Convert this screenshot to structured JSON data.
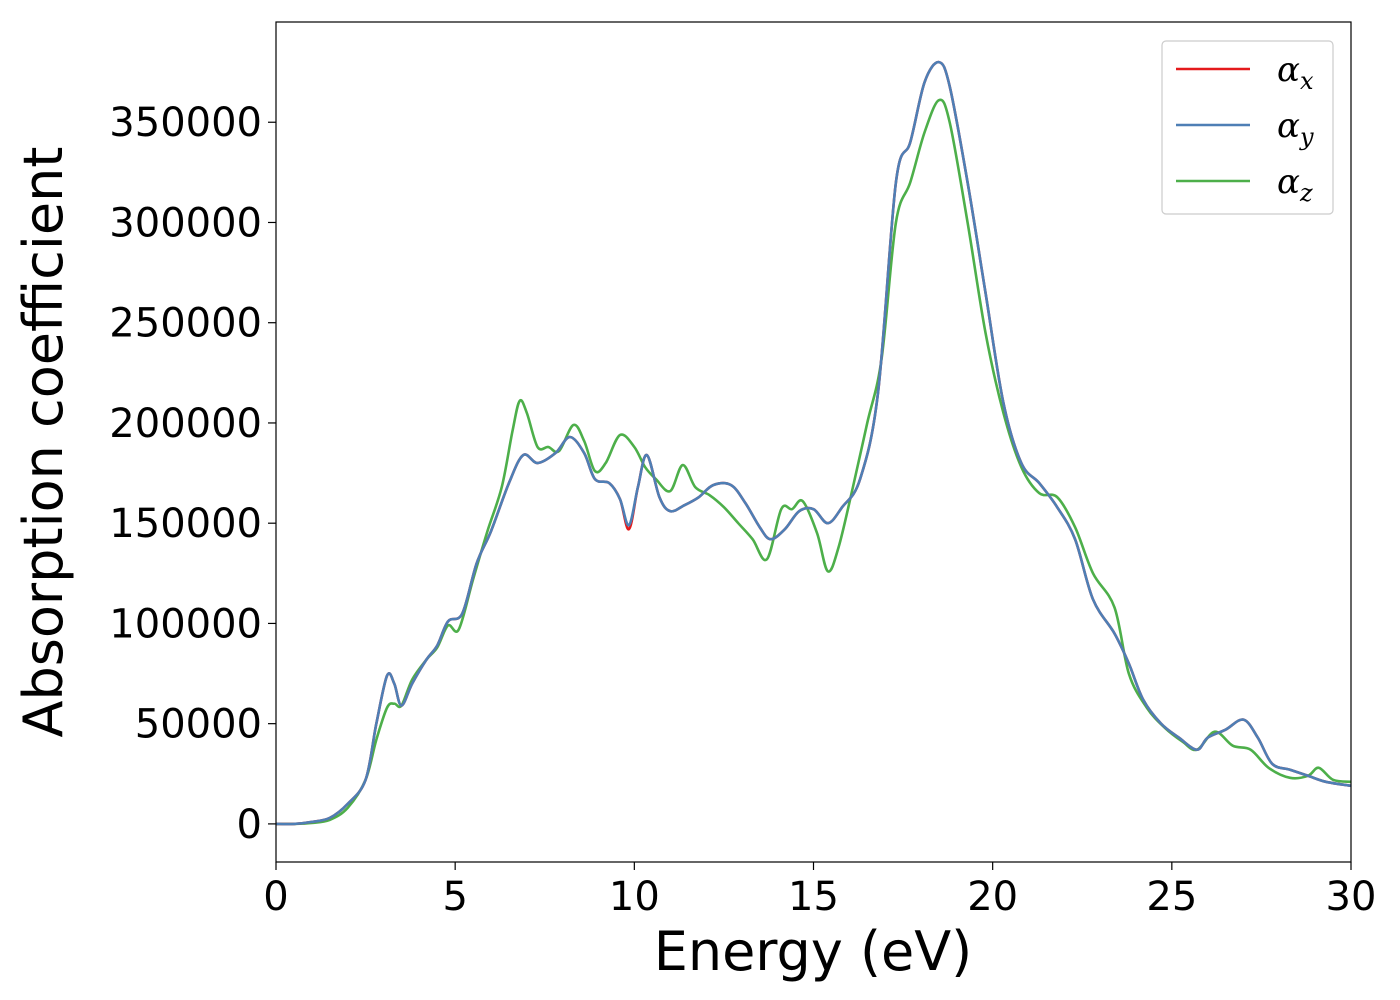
{
  "chart_data": {
    "type": "line",
    "xlabel": "Energy (eV)",
    "ylabel": "Absorption coefficient",
    "xlim": [
      0,
      30
    ],
    "ylim": [
      -19000,
      400000
    ],
    "xticks": [
      0,
      5,
      10,
      15,
      20,
      25,
      30
    ],
    "yticks": [
      0,
      50000,
      100000,
      150000,
      200000,
      250000,
      300000,
      350000
    ],
    "grid": false,
    "legend_position": "top-right",
    "series": [
      {
        "name": "αx",
        "legend_base": "α",
        "legend_sub": "x",
        "color": "#e41a1c",
        "points": [
          [
            0,
            0
          ],
          [
            0.5,
            0
          ],
          [
            1.0,
            1000
          ],
          [
            1.5,
            3000
          ],
          [
            2.0,
            10000
          ],
          [
            2.5,
            22000
          ],
          [
            2.8,
            50000
          ],
          [
            3.1,
            74000
          ],
          [
            3.3,
            70000
          ],
          [
            3.5,
            59000
          ],
          [
            3.8,
            70000
          ],
          [
            4.2,
            82000
          ],
          [
            4.5,
            89000
          ],
          [
            4.8,
            101000
          ],
          [
            5.2,
            105000
          ],
          [
            5.6,
            130000
          ],
          [
            6.0,
            146000
          ],
          [
            6.5,
            170000
          ],
          [
            6.9,
            184000
          ],
          [
            7.3,
            180000
          ],
          [
            7.8,
            185000
          ],
          [
            8.2,
            193000
          ],
          [
            8.6,
            185000
          ],
          [
            8.9,
            172000
          ],
          [
            9.3,
            170000
          ],
          [
            9.6,
            162000
          ],
          [
            9.85,
            147000
          ],
          [
            10.1,
            168000
          ],
          [
            10.35,
            184000
          ],
          [
            10.7,
            163000
          ],
          [
            11.0,
            156000
          ],
          [
            11.4,
            159000
          ],
          [
            11.8,
            163000
          ],
          [
            12.2,
            169000
          ],
          [
            12.7,
            169000
          ],
          [
            13.1,
            160000
          ],
          [
            13.5,
            148000
          ],
          [
            13.8,
            142000
          ],
          [
            14.2,
            147000
          ],
          [
            14.6,
            156000
          ],
          [
            15.0,
            157000
          ],
          [
            15.4,
            150000
          ],
          [
            15.8,
            158000
          ],
          [
            16.3,
            172000
          ],
          [
            16.8,
            215000
          ],
          [
            17.3,
            320000
          ],
          [
            17.7,
            340000
          ],
          [
            18.1,
            370000
          ],
          [
            18.5,
            380000
          ],
          [
            18.8,
            368000
          ],
          [
            19.3,
            320000
          ],
          [
            19.8,
            265000
          ],
          [
            20.3,
            210000
          ],
          [
            20.8,
            180000
          ],
          [
            21.3,
            170000
          ],
          [
            21.8,
            158000
          ],
          [
            22.3,
            142000
          ],
          [
            22.8,
            112000
          ],
          [
            23.4,
            95000
          ],
          [
            23.8,
            80000
          ],
          [
            24.2,
            62000
          ],
          [
            24.7,
            50000
          ],
          [
            25.2,
            43000
          ],
          [
            25.7,
            37000
          ],
          [
            26.0,
            43000
          ],
          [
            26.5,
            47000
          ],
          [
            27.0,
            52000
          ],
          [
            27.4,
            43000
          ],
          [
            27.8,
            30000
          ],
          [
            28.3,
            27000
          ],
          [
            28.8,
            24000
          ],
          [
            29.3,
            21000
          ],
          [
            30,
            19000
          ]
        ]
      },
      {
        "name": "αy",
        "legend_base": "α",
        "legend_sub": "y",
        "color": "#4e7fb5",
        "points": [
          [
            0,
            0
          ],
          [
            0.5,
            0
          ],
          [
            1.0,
            1000
          ],
          [
            1.5,
            3000
          ],
          [
            2.0,
            10000
          ],
          [
            2.5,
            22000
          ],
          [
            2.8,
            50000
          ],
          [
            3.1,
            74000
          ],
          [
            3.3,
            70000
          ],
          [
            3.5,
            59000
          ],
          [
            3.8,
            70000
          ],
          [
            4.2,
            82000
          ],
          [
            4.5,
            89000
          ],
          [
            4.8,
            101000
          ],
          [
            5.2,
            105000
          ],
          [
            5.6,
            130000
          ],
          [
            6.0,
            146000
          ],
          [
            6.5,
            170000
          ],
          [
            6.9,
            184000
          ],
          [
            7.3,
            180000
          ],
          [
            7.8,
            185000
          ],
          [
            8.2,
            193000
          ],
          [
            8.6,
            185000
          ],
          [
            8.9,
            172000
          ],
          [
            9.3,
            170000
          ],
          [
            9.6,
            162000
          ],
          [
            9.85,
            149000
          ],
          [
            10.1,
            168000
          ],
          [
            10.35,
            184000
          ],
          [
            10.7,
            163000
          ],
          [
            11.0,
            156000
          ],
          [
            11.4,
            159000
          ],
          [
            11.8,
            163000
          ],
          [
            12.2,
            169000
          ],
          [
            12.7,
            169000
          ],
          [
            13.1,
            160000
          ],
          [
            13.5,
            148000
          ],
          [
            13.8,
            142000
          ],
          [
            14.2,
            147000
          ],
          [
            14.6,
            156000
          ],
          [
            15.0,
            157000
          ],
          [
            15.4,
            150000
          ],
          [
            15.8,
            158000
          ],
          [
            16.3,
            172000
          ],
          [
            16.8,
            215000
          ],
          [
            17.3,
            320000
          ],
          [
            17.7,
            340000
          ],
          [
            18.1,
            370000
          ],
          [
            18.5,
            380000
          ],
          [
            18.8,
            368000
          ],
          [
            19.3,
            320000
          ],
          [
            19.8,
            265000
          ],
          [
            20.3,
            210000
          ],
          [
            20.8,
            180000
          ],
          [
            21.3,
            170000
          ],
          [
            21.8,
            158000
          ],
          [
            22.3,
            142000
          ],
          [
            22.8,
            112000
          ],
          [
            23.4,
            95000
          ],
          [
            23.8,
            80000
          ],
          [
            24.2,
            62000
          ],
          [
            24.7,
            50000
          ],
          [
            25.2,
            43000
          ],
          [
            25.7,
            37000
          ],
          [
            26.0,
            43000
          ],
          [
            26.5,
            47000
          ],
          [
            27.0,
            52000
          ],
          [
            27.4,
            43000
          ],
          [
            27.8,
            30000
          ],
          [
            28.3,
            27000
          ],
          [
            28.8,
            24000
          ],
          [
            29.3,
            21000
          ],
          [
            30,
            19000
          ]
        ]
      },
      {
        "name": "αz",
        "legend_base": "α",
        "legend_sub": "z",
        "color": "#4daf4a",
        "points": [
          [
            0,
            0
          ],
          [
            0.5,
            0
          ],
          [
            1.0,
            500
          ],
          [
            1.5,
            2000
          ],
          [
            2.0,
            8000
          ],
          [
            2.5,
            22000
          ],
          [
            2.8,
            42000
          ],
          [
            3.1,
            58000
          ],
          [
            3.3,
            60000
          ],
          [
            3.5,
            59000
          ],
          [
            3.8,
            72000
          ],
          [
            4.2,
            82000
          ],
          [
            4.5,
            88000
          ],
          [
            4.8,
            99000
          ],
          [
            5.1,
            97000
          ],
          [
            5.5,
            122000
          ],
          [
            5.9,
            146000
          ],
          [
            6.3,
            168000
          ],
          [
            6.6,
            196000
          ],
          [
            6.8,
            211000
          ],
          [
            7.0,
            205000
          ],
          [
            7.3,
            188000
          ],
          [
            7.6,
            188000
          ],
          [
            7.9,
            186000
          ],
          [
            8.3,
            199000
          ],
          [
            8.6,
            191000
          ],
          [
            8.9,
            176000
          ],
          [
            9.2,
            180000
          ],
          [
            9.6,
            194000
          ],
          [
            10.0,
            188000
          ],
          [
            10.3,
            178000
          ],
          [
            10.6,
            172000
          ],
          [
            11.0,
            166000
          ],
          [
            11.35,
            179000
          ],
          [
            11.7,
            168000
          ],
          [
            12.1,
            164000
          ],
          [
            12.5,
            158000
          ],
          [
            12.9,
            150000
          ],
          [
            13.3,
            142000
          ],
          [
            13.7,
            132000
          ],
          [
            14.1,
            157000
          ],
          [
            14.4,
            157000
          ],
          [
            14.7,
            161000
          ],
          [
            15.1,
            145000
          ],
          [
            15.4,
            126000
          ],
          [
            15.7,
            138000
          ],
          [
            16.1,
            168000
          ],
          [
            16.5,
            200000
          ],
          [
            16.9,
            232000
          ],
          [
            17.3,
            300000
          ],
          [
            17.7,
            320000
          ],
          [
            18.1,
            345000
          ],
          [
            18.5,
            361000
          ],
          [
            18.8,
            350000
          ],
          [
            19.3,
            300000
          ],
          [
            19.8,
            245000
          ],
          [
            20.3,
            205000
          ],
          [
            20.8,
            178000
          ],
          [
            21.3,
            165000
          ],
          [
            21.8,
            163000
          ],
          [
            22.3,
            148000
          ],
          [
            22.8,
            125000
          ],
          [
            23.4,
            108000
          ],
          [
            23.8,
            75000
          ],
          [
            24.3,
            58000
          ],
          [
            24.8,
            48000
          ],
          [
            25.3,
            41000
          ],
          [
            25.7,
            37000
          ],
          [
            26.2,
            46000
          ],
          [
            26.7,
            39000
          ],
          [
            27.2,
            37000
          ],
          [
            27.7,
            28000
          ],
          [
            28.3,
            23000
          ],
          [
            28.8,
            24000
          ],
          [
            29.1,
            28000
          ],
          [
            29.5,
            22000
          ],
          [
            30,
            21000
          ]
        ]
      }
    ]
  }
}
